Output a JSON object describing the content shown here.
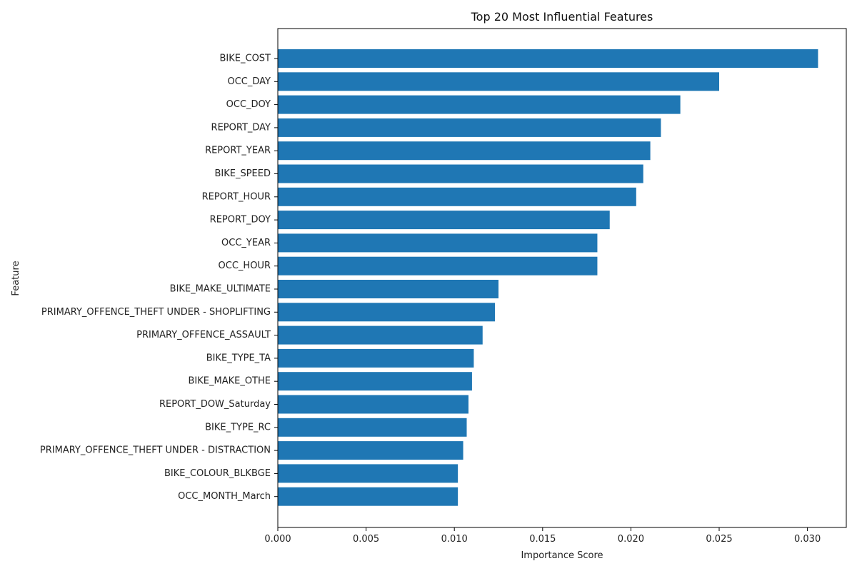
{
  "chart_data": {
    "type": "bar",
    "orientation": "horizontal",
    "title": "Top 20 Most Influential Features",
    "xlabel": "Importance Score",
    "ylabel": "Feature",
    "xlim": [
      0,
      0.0322
    ],
    "xticks": [
      0.0,
      0.005,
      0.01,
      0.015,
      0.02,
      0.025,
      0.03
    ],
    "xtick_labels": [
      "0.000",
      "0.005",
      "0.010",
      "0.015",
      "0.020",
      "0.025",
      "0.030"
    ],
    "grid": false,
    "bar_color": "#1f77b4",
    "categories": [
      "BIKE_COST",
      "OCC_DAY",
      "OCC_DOY",
      "REPORT_DAY",
      "REPORT_YEAR",
      "BIKE_SPEED",
      "REPORT_HOUR",
      "REPORT_DOY",
      "OCC_YEAR",
      "OCC_HOUR",
      "BIKE_MAKE_ULTIMATE",
      "PRIMARY_OFFENCE_THEFT UNDER - SHOPLIFTING",
      "PRIMARY_OFFENCE_ASSAULT",
      "BIKE_TYPE_TA",
      "BIKE_MAKE_OTHE",
      "REPORT_DOW_Saturday",
      "BIKE_TYPE_RC",
      "PRIMARY_OFFENCE_THEFT UNDER - DISTRACTION",
      "BIKE_COLOUR_BLKBGE",
      "OCC_MONTH_March"
    ],
    "values": [
      0.0306,
      0.025,
      0.0228,
      0.0217,
      0.0211,
      0.0207,
      0.0203,
      0.0188,
      0.0181,
      0.0181,
      0.0125,
      0.0123,
      0.0116,
      0.0111,
      0.011,
      0.0108,
      0.0107,
      0.0105,
      0.0102,
      0.0102
    ]
  }
}
